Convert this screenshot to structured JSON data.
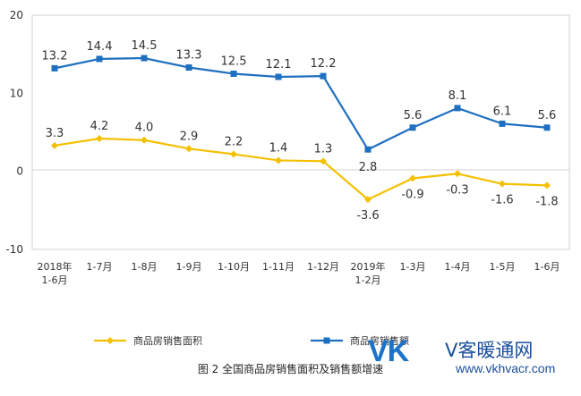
{
  "chart_data": {
    "type": "line",
    "categories": [
      [
        "2018年",
        "1-6月"
      ],
      [
        "1-7月"
      ],
      [
        "1-8月"
      ],
      [
        "1-9月"
      ],
      [
        "1-10月"
      ],
      [
        "1-11月"
      ],
      [
        "1-12月"
      ],
      [
        "2019年",
        "1-2月"
      ],
      [
        "1-3月"
      ],
      [
        "1-4月"
      ],
      [
        "1-5月"
      ],
      [
        "1-6月"
      ]
    ],
    "series": [
      {
        "name": "商品房销售面积",
        "color": "#f5c000",
        "values": [
          3.3,
          4.2,
          4.0,
          2.9,
          2.2,
          1.4,
          1.3,
          -3.6,
          -0.9,
          -0.3,
          -1.6,
          -1.8
        ],
        "labels": [
          "3.3",
          "4.2",
          "4.0",
          "2.9",
          "2.2",
          "1.4",
          "1.3",
          "-3.6",
          "-0.9",
          "-0.3",
          "-1.6",
          "-1.8"
        ]
      },
      {
        "name": "商品房销售额",
        "color": "#1f6fc0",
        "values": [
          13.2,
          14.4,
          14.5,
          13.3,
          12.5,
          12.1,
          12.2,
          2.8,
          5.6,
          8.1,
          6.1,
          5.6
        ],
        "labels": [
          "13.2",
          "14.4",
          "14.5",
          "13.3",
          "12.5",
          "12.1",
          "12.2",
          "2.8",
          "5.6",
          "8.1",
          "6.1",
          "5.6"
        ]
      }
    ],
    "yticks": [
      20,
      10,
      0,
      -10
    ],
    "ylim": [
      -10,
      20
    ],
    "grid": false,
    "legend_position": "bottom"
  },
  "caption": "图 2   全国商品房销售面积及销售额增速",
  "watermark": {
    "brand": "VK",
    "name": "V客暖通网",
    "url": "www.vkhvacr.com"
  }
}
